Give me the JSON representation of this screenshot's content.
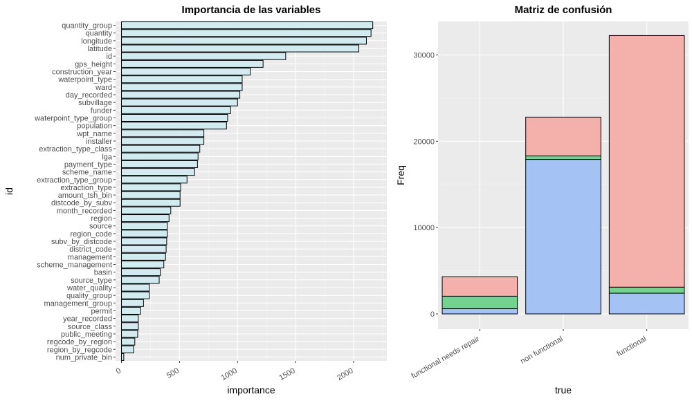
{
  "chart_data": [
    {
      "type": "bar",
      "orientation": "horizontal",
      "title": "Importancia de las variables",
      "xlabel": "importance",
      "ylabel": "id",
      "xlim": [
        0,
        2250
      ],
      "xticks": [
        0,
        500,
        1000,
        1500,
        2000
      ],
      "xtick_labels": [
        "0",
        "500",
        "1000",
        "1500",
        "2000"
      ],
      "grid": true,
      "bar_fill": "#d1ebf1",
      "bar_stroke": "#000000",
      "categories": [
        "quantity_group",
        "quantity",
        "longitude",
        "latitude",
        "id",
        "gps_height",
        "construction_year",
        "waterpoint_type",
        "ward",
        "day_recorded",
        "subvillage",
        "funder",
        "waterpoint_type_group",
        "population",
        "wpt_name",
        "installer",
        "extraction_type_class",
        "lga",
        "payment_type",
        "scheme_name",
        "extraction_type_group",
        "extraction_type",
        "amount_tsh_bin",
        "distcode_by_subv",
        "month_recorded",
        "region",
        "source",
        "region_code",
        "subv_by_distcode",
        "district_code",
        "management",
        "scheme_management",
        "basin",
        "source_type",
        "water_quality",
        "quality_group",
        "management_group",
        "permit",
        "year_recorded",
        "source_class",
        "public_meeting",
        "regcode_by_region",
        "region_by_regcode",
        "num_private_bin"
      ],
      "values": [
        2165,
        2150,
        2110,
        2045,
        1415,
        1220,
        1110,
        1040,
        1040,
        1020,
        1000,
        940,
        915,
        905,
        710,
        710,
        675,
        660,
        655,
        630,
        565,
        510,
        505,
        505,
        425,
        410,
        395,
        395,
        390,
        385,
        380,
        365,
        335,
        325,
        240,
        240,
        190,
        165,
        145,
        145,
        140,
        115,
        105,
        20
      ]
    },
    {
      "type": "bar",
      "stacked": true,
      "title": "Matriz de confusión",
      "xlabel": "true",
      "ylabel": "Freq",
      "ylim": [
        0,
        33000
      ],
      "yticks": [
        0,
        10000,
        20000,
        30000
      ],
      "ytick_labels": [
        "0",
        "10000",
        "20000",
        "30000"
      ],
      "grid": true,
      "categories": [
        "functional needs repair",
        "non functional",
        "functional"
      ],
      "series": [
        {
          "values": [
            600,
            17900,
            2400
          ],
          "color": "#a4c2f4"
        },
        {
          "values": [
            1450,
            400,
            700
          ],
          "color": "#72d28e"
        },
        {
          "values": [
            2250,
            4500,
            29150
          ],
          "color": "#f4b0ab"
        }
      ]
    }
  ]
}
